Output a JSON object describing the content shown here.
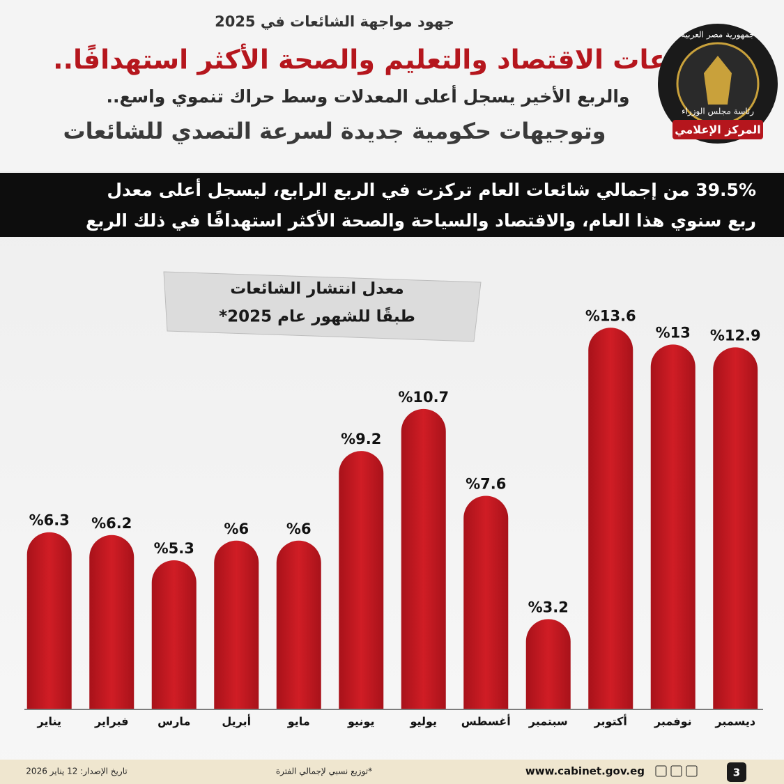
{
  "header": {
    "kicker": "جهود مواجهة الشائعات في 2025",
    "title": "قطاعات الاقتصاد والتعليم والصحة الأكثر استهدافًا..",
    "subtitle_1": "والربع الأخير يسجل أعلى المعدلات وسط حراك تنموي واسع..",
    "subtitle_2": "وتوجيهات حكومية جديدة لسرعة التصدي للشائعات"
  },
  "logo": {
    "top": "جمهورية مصر العربية",
    "bottom": "رئاسة مجلس الوزراء",
    "banner": "المركز الإعلامي"
  },
  "banner": {
    "lines": [
      "39.5% من إجمالي شائعات العام تركزت في الربع الرابع، ليسجل أعلى معدل",
      "ربع سنوي هذا العام، والاقتصاد والسياحة والصحة الأكثر استهدافًا في ذلك الربع"
    ]
  },
  "chart_data": {
    "type": "bar",
    "title": [
      "معدل انتشار الشائعات",
      "طبقًا للشهور عام 2025*"
    ],
    "categories": [
      "يناير",
      "فبراير",
      "مارس",
      "أبريل",
      "مايو",
      "يونيو",
      "يوليو",
      "أغسطس",
      "سبتمبر",
      "أكتوبر",
      "نوفمبر",
      "ديسمبر"
    ],
    "values": [
      6.3,
      6.2,
      5.3,
      6,
      6,
      9.2,
      10.7,
      7.6,
      3.2,
      13.6,
      13,
      12.9
    ],
    "value_labels": [
      "%6.3",
      "%6.2",
      "%5.3",
      "%6",
      "%6",
      "%9.2",
      "%10.7",
      "%7.6",
      "%3.2",
      "%13.6",
      "%13",
      "%12.9"
    ],
    "color": "#c0161e"
  },
  "footer": {
    "page": "3",
    "url": "www.cabinet.gov.eg",
    "note": "*توزيع نسبي لإجمالي الفترة",
    "date": "تاريخ الإصدار: 12 يناير 2026"
  }
}
